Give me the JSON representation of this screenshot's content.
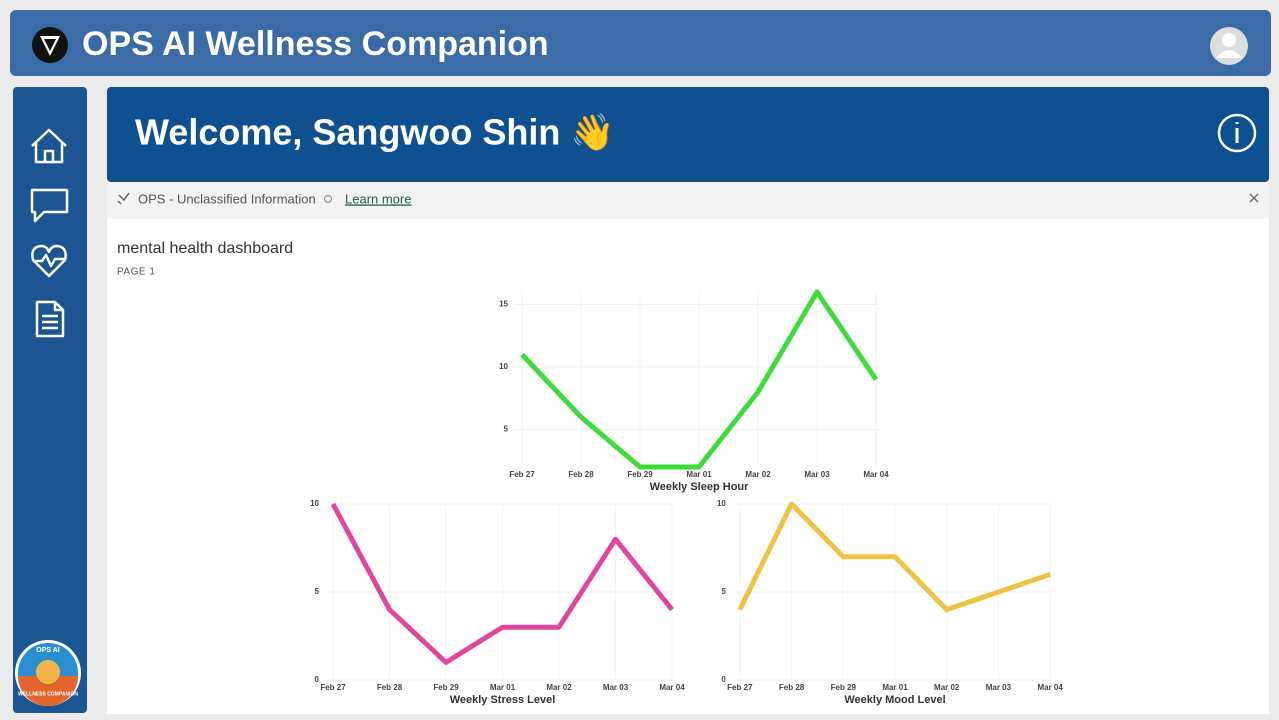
{
  "header": {
    "title": "OPS AI Wellness Companion"
  },
  "welcome": {
    "text": "Welcome, Sangwoo Shin 👋"
  },
  "info_bar": {
    "label": "OPS - Unclassified Information",
    "link": "Learn more"
  },
  "report": {
    "title": "mental health dashboard",
    "page": "PAGE 1"
  },
  "logo": {
    "top": "OPS AI",
    "bottom": "WELLNESS COMPANION"
  },
  "chart_data": [
    {
      "type": "line",
      "xlabel": "Weekly Sleep Hour",
      "categories": [
        "Feb 27",
        "Feb 28",
        "Feb 29",
        "Mar 01",
        "Mar 02",
        "Mar 03",
        "Mar 04"
      ],
      "values": [
        11,
        6,
        2,
        2,
        8,
        16,
        9
      ],
      "color": "#3ddc3a",
      "ylim": [
        2,
        16
      ],
      "yticks": [
        5,
        10,
        15
      ],
      "grid": true
    },
    {
      "type": "line",
      "xlabel": "Weekly Stress Level",
      "categories": [
        "Feb 27",
        "Feb 28",
        "Feb 29",
        "Mar 01",
        "Mar 02",
        "Mar 03",
        "Mar 04"
      ],
      "values": [
        10,
        4,
        1,
        3,
        3,
        8,
        4
      ],
      "color": "#e0479b",
      "ylim": [
        0,
        10
      ],
      "yticks": [
        0,
        5,
        10
      ],
      "grid": true
    },
    {
      "type": "line",
      "xlabel": "Weekly Mood Level",
      "categories": [
        "Feb 27",
        "Feb 28",
        "Feb 29",
        "Mar 01",
        "Mar 02",
        "Mar 03",
        "Mar 04"
      ],
      "values": [
        4,
        10,
        7,
        7,
        4,
        5,
        6
      ],
      "color": "#f0c244",
      "ylim": [
        0,
        10
      ],
      "yticks": [
        0,
        5,
        10
      ],
      "grid": true
    }
  ]
}
